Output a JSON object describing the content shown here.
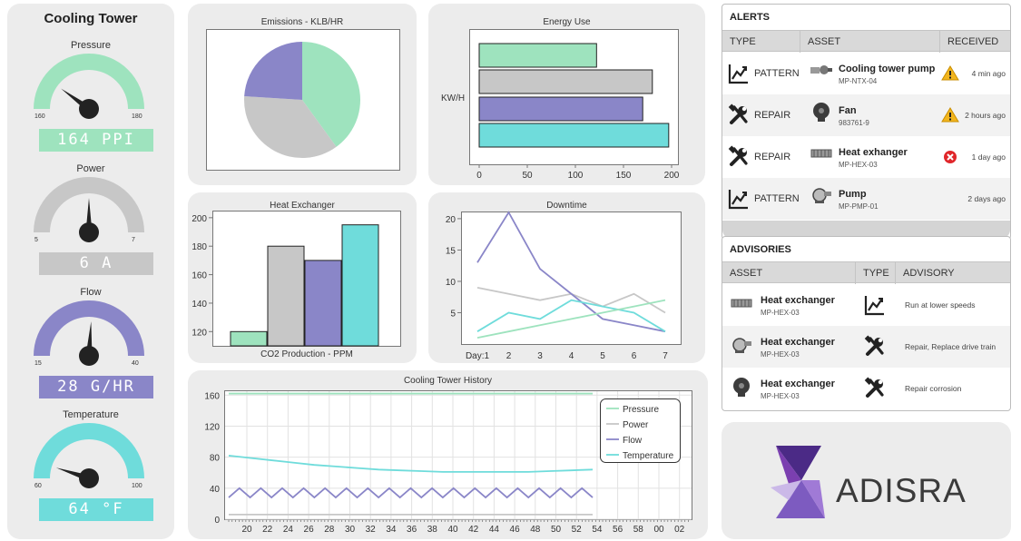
{
  "cooling_tower": {
    "title": "Cooling Tower",
    "gauges": [
      {
        "label": "Pressure",
        "min": "160",
        "max": "180",
        "value": "164 PPI",
        "level": 0.2,
        "color": "#9ee3be"
      },
      {
        "label": "Power",
        "min": "5",
        "max": "7",
        "value": "6 A",
        "level": 0.5,
        "color": "#c7c7c7"
      },
      {
        "label": "Flow",
        "min": "15",
        "max": "40",
        "value": "28 G/HR",
        "level": 0.52,
        "color": "#8a86c8"
      },
      {
        "label": "Temperature",
        "min": "60",
        "max": "100",
        "value": "64 °F",
        "level": 0.1,
        "color": "#6fdcdb"
      }
    ]
  },
  "chart_data": [
    {
      "type": "pie",
      "title": "Emissions - KLB/HR",
      "slices": [
        {
          "value": 40,
          "color": "#9ee3be"
        },
        {
          "value": 36,
          "color": "#c7c7c7"
        },
        {
          "value": 24,
          "color": "#8a86c8"
        }
      ]
    },
    {
      "type": "bar",
      "orientation": "horizontal",
      "title": "Energy Use",
      "ylabel": "KW/H",
      "values": [
        122,
        180,
        170,
        197
      ],
      "colors": [
        "#9ee3be",
        "#c7c7c7",
        "#8a86c8",
        "#6fdcdb"
      ],
      "xlim": [
        0,
        200
      ],
      "xticks": [
        "0",
        "50",
        "100",
        "150",
        "200"
      ]
    },
    {
      "type": "bar",
      "title": "Heat Exchanger",
      "xlabel": "CO2 Production - PPM",
      "values": [
        120,
        180,
        170,
        195
      ],
      "colors": [
        "#9ee3be",
        "#c7c7c7",
        "#8a86c8",
        "#6fdcdb"
      ],
      "ylim": [
        110,
        205
      ],
      "yticks": [
        "120",
        "140",
        "160",
        "180",
        "200"
      ]
    },
    {
      "type": "line",
      "title": "Downtime",
      "categories": [
        "Day:1",
        "2",
        "3",
        "4",
        "5",
        "6",
        "7"
      ],
      "yticks": [
        "5",
        "10",
        "15",
        "20"
      ],
      "ylim": [
        0,
        21
      ],
      "series": [
        {
          "color": "#c7c7c7",
          "values": [
            9,
            8,
            7,
            8,
            6,
            8,
            5
          ]
        },
        {
          "color": "#8a86c8",
          "values": [
            13,
            21,
            12,
            8,
            4,
            3,
            2
          ]
        },
        {
          "color": "#6fdcdb",
          "values": [
            2,
            5,
            4,
            7,
            6,
            5,
            2
          ]
        },
        {
          "color": "#9ee3be",
          "values": [
            1,
            2,
            3,
            4,
            5,
            6,
            7
          ]
        }
      ]
    },
    {
      "type": "line",
      "title": "Cooling Tower History",
      "yticks": [
        "0",
        "40",
        "80",
        "120",
        "160"
      ],
      "ylim": [
        0,
        165
      ],
      "xticks": [
        "20",
        "22",
        "24",
        "26",
        "28",
        "30",
        "32",
        "34",
        "36",
        "38",
        "40",
        "42",
        "44",
        "46",
        "48",
        "50",
        "52",
        "54",
        "56",
        "58",
        "00",
        "02"
      ],
      "legend": "top-right",
      "series": [
        {
          "name": "Pressure",
          "color": "#9ee3be",
          "values": [
            162,
            162,
            162,
            162,
            162,
            162,
            162,
            162,
            162,
            162,
            162,
            162,
            162,
            162,
            162,
            162,
            162,
            162
          ]
        },
        {
          "name": "Power",
          "color": "#c7c7c7",
          "values": [
            6,
            6,
            6,
            6,
            6,
            6,
            6,
            6,
            6,
            6,
            6,
            6,
            6,
            6,
            6,
            6,
            6,
            6
          ]
        },
        {
          "name": "Flow",
          "color": "#8a86c8",
          "values": [
            28,
            40,
            28,
            40,
            28,
            40,
            28,
            40,
            28,
            40,
            28,
            40,
            28,
            40,
            28,
            40,
            28,
            40,
            28,
            40,
            28,
            40,
            28,
            40,
            28,
            40,
            28,
            40,
            28,
            40,
            28,
            40,
            28,
            40,
            28
          ]
        },
        {
          "name": "Temperature",
          "color": "#6fdcdb",
          "values": [
            82,
            79,
            76,
            73,
            70,
            68,
            66,
            64,
            63,
            62,
            61,
            61,
            61,
            61,
            61,
            62,
            63,
            64
          ]
        }
      ]
    }
  ],
  "alerts": {
    "title": "ALERTS",
    "columns": [
      "TYPE",
      "ASSET",
      "RECEIVED"
    ],
    "rows": [
      {
        "type": "PATTERN",
        "type_icon": "trend-chart-icon",
        "asset": "Cooling tower pump",
        "asset_id": "MP-NTX-04",
        "asset_icon": "pump-assembly-icon",
        "status_icon": "warning-icon",
        "received": "4 min ago"
      },
      {
        "type": "REPAIR",
        "type_icon": "tools-icon",
        "asset": "Fan",
        "asset_id": "983761-9",
        "asset_icon": "fan-icon",
        "status_icon": "warning-icon",
        "received": "2 hours ago"
      },
      {
        "type": "REPAIR",
        "type_icon": "tools-icon",
        "asset": "Heat exhanger",
        "asset_id": "MP-HEX-03",
        "asset_icon": "heat-exchanger-icon",
        "status_icon": "error-icon",
        "received": "1 day ago"
      },
      {
        "type": "PATTERN",
        "type_icon": "trend-chart-icon",
        "asset": "Pump",
        "asset_id": "MP-PMP-01",
        "asset_icon": "pump-icon",
        "status_icon": "",
        "received": "2 days ago"
      }
    ]
  },
  "advisories": {
    "title": "ADVISORIES",
    "columns": [
      "ASSET",
      "TYPE",
      "ADVISORY"
    ],
    "rows": [
      {
        "asset": "Heat exchanger",
        "asset_id": "MP-HEX-03",
        "asset_icon": "heat-exchanger-icon",
        "type_icon": "trend-chart-icon",
        "advisory": "Run at lower speeds"
      },
      {
        "asset": "Heat exchanger",
        "asset_id": "MP-HEX-03",
        "asset_icon": "pump-icon",
        "type_icon": "tools-icon",
        "advisory": "Repair, Replace drive train"
      },
      {
        "asset": "Heat exchanger",
        "asset_id": "MP-HEX-03",
        "asset_icon": "fan-icon",
        "type_icon": "tools-icon",
        "advisory": "Repair corrosion"
      }
    ]
  },
  "logo": {
    "text": "ADISRA"
  }
}
